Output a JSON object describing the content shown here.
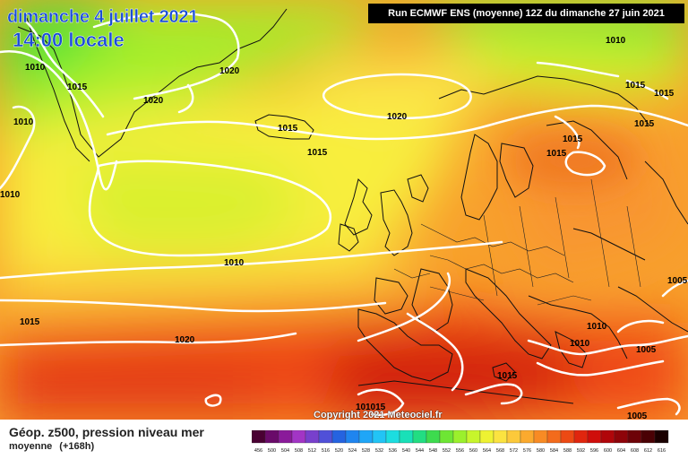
{
  "header": {
    "date": "dimanche 4 juillet 2021",
    "time": "14:00 locale",
    "run_info": "Run ECMWF ENS (moyenne) 12Z du dimanche 27 juin 2021"
  },
  "credit": "Copyright 2021 Meteociel.fr",
  "legend": {
    "title": "Géop. z500, pression niveau mer",
    "subtitle_left": "moyenne",
    "subtitle_right": "(+168h)",
    "colorbar_ticks": [
      "456",
      "500",
      "504",
      "508",
      "512",
      "516",
      "520",
      "524",
      "528",
      "532",
      "536",
      "540",
      "544",
      "548",
      "552",
      "556",
      "560",
      "564",
      "568",
      "572",
      "576",
      "580",
      "584",
      "588",
      "592",
      "596",
      "600",
      "604",
      "608",
      "612",
      "616"
    ],
    "colorbar_colors": [
      "#4a0033",
      "#6a0b6a",
      "#8a1a9a",
      "#a235c5",
      "#7840cc",
      "#5050d8",
      "#2563e0",
      "#1f85ef",
      "#1fa6f7",
      "#22c4f5",
      "#1cdde0",
      "#19e0b8",
      "#22dd82",
      "#3ddb4e",
      "#6ee634",
      "#9bf02c",
      "#c7f52b",
      "#eef232",
      "#fbe340",
      "#fcc93a",
      "#fbaa2e",
      "#f88b24",
      "#f36b1c",
      "#ec4a14",
      "#e0260e",
      "#cf0e0b",
      "#b0060a",
      "#8e0409",
      "#6d0207",
      "#4a0104",
      "#1a0000"
    ]
  },
  "isobars": [
    {
      "text": "1010"
    },
    {
      "text": "1015"
    },
    {
      "text": "1020"
    },
    {
      "text": "1010"
    },
    {
      "text": "1020"
    },
    {
      "text": "1015"
    },
    {
      "text": "1015"
    },
    {
      "text": "1020"
    },
    {
      "text": "1010"
    },
    {
      "text": "1010"
    },
    {
      "text": "1015"
    },
    {
      "text": "1015"
    },
    {
      "text": "1015"
    },
    {
      "text": "1015"
    },
    {
      "text": "1015"
    },
    {
      "text": "1010"
    },
    {
      "text": "1015"
    },
    {
      "text": "1020"
    },
    {
      "text": "1005"
    },
    {
      "text": "1010"
    },
    {
      "text": "1010"
    },
    {
      "text": "1005"
    },
    {
      "text": "1015"
    },
    {
      "text": "1005"
    },
    {
      "text": "10"
    },
    {
      "text": "1015"
    }
  ]
}
